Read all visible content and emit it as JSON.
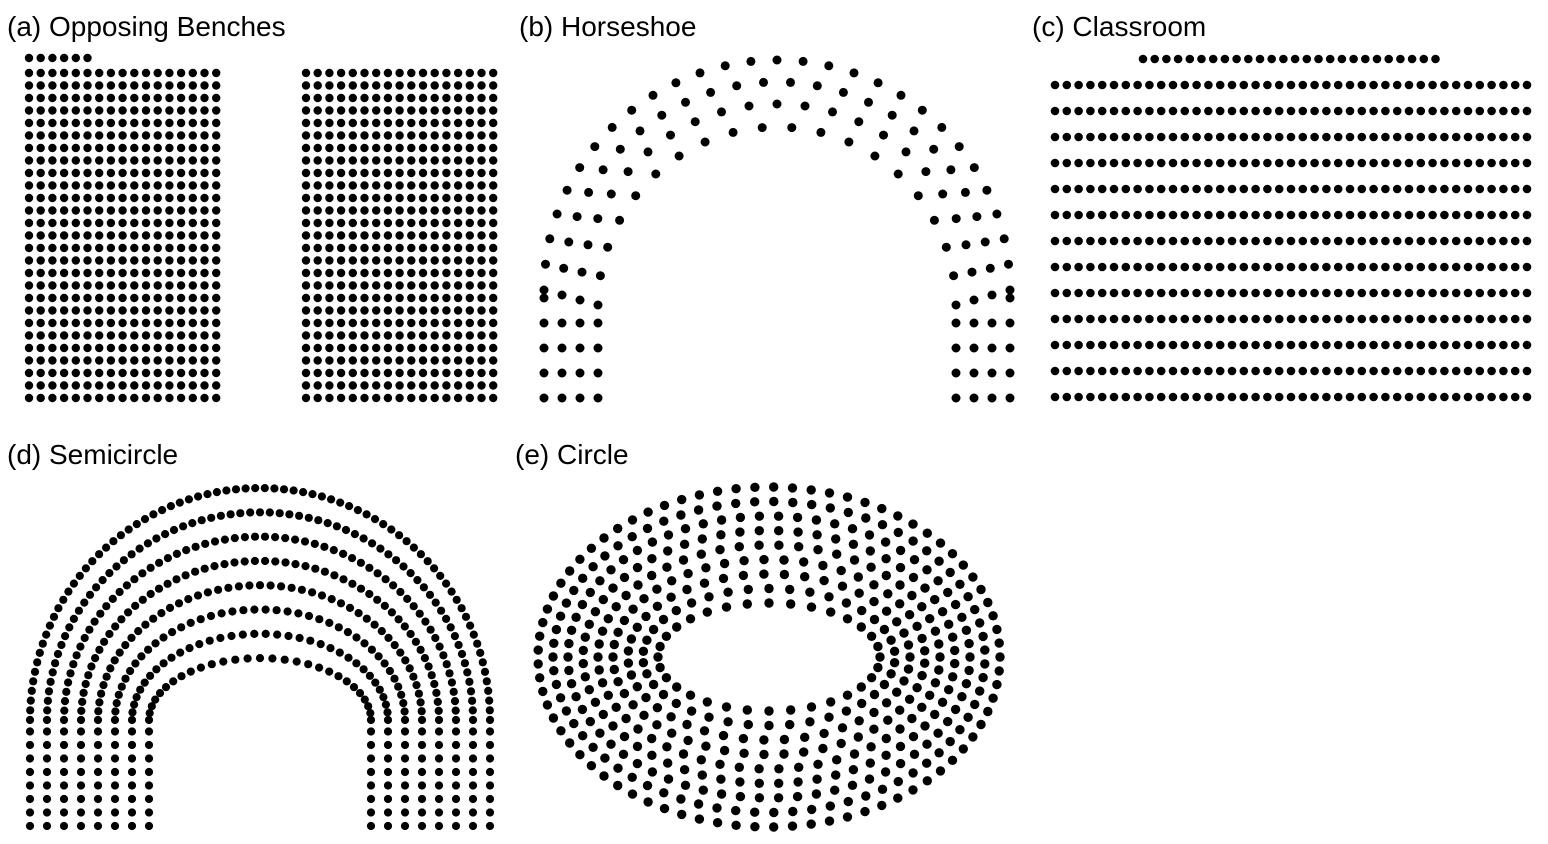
{
  "figure": {
    "dot_color": "#000000",
    "background": "#ffffff",
    "panels": [
      {
        "id": "a",
        "title": "(a) Opposing Benches",
        "layout": "opposing-benches"
      },
      {
        "id": "b",
        "title": "(b) Horseshoe",
        "layout": "horseshoe"
      },
      {
        "id": "c",
        "title": "(c) Classroom",
        "layout": "classroom"
      },
      {
        "id": "d",
        "title": "(d) Semicircle",
        "layout": "semicircle"
      },
      {
        "id": "e",
        "title": "(e) Circle",
        "layout": "circle"
      }
    ]
  }
}
